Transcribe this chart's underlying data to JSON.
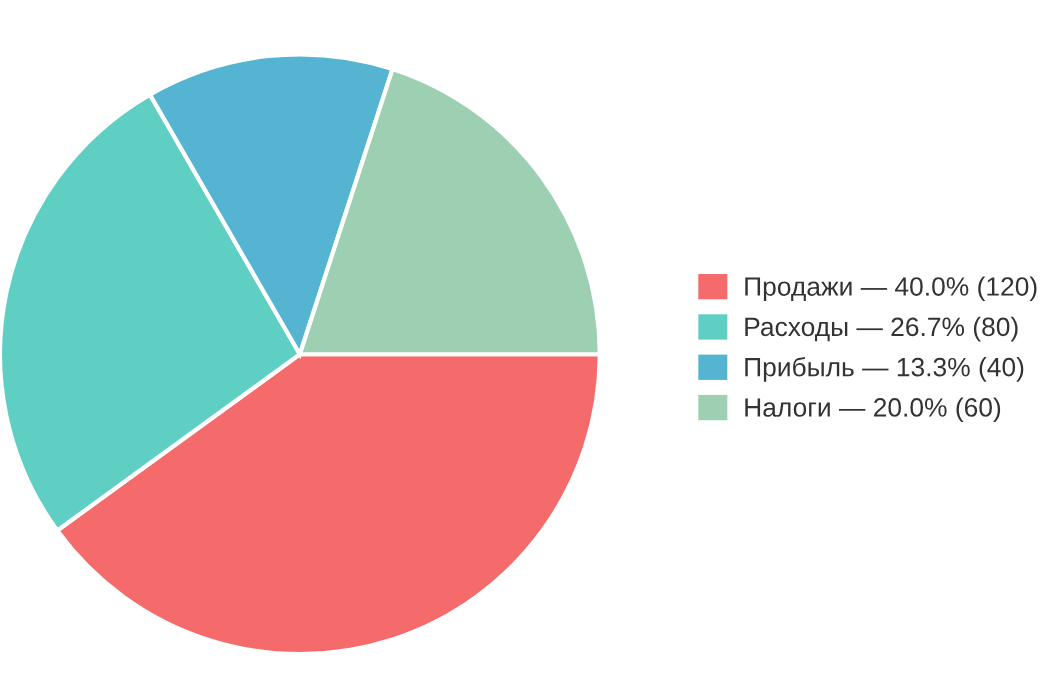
{
  "chart_data": {
    "type": "pie",
    "categories": [
      "Продажи",
      "Расходы",
      "Прибыль",
      "Налоги"
    ],
    "values": [
      120,
      80,
      40,
      60
    ],
    "value_labels": [
      "— 40.0% (120)",
      "— 26.7% (80)",
      "— 13.3% (40)",
      "— 20.0% (60)"
    ],
    "colors": [
      "#f56b6b",
      "#5fcfc4",
      "#56b4d3",
      "#9dcfb3"
    ],
    "legend": "right"
  }
}
